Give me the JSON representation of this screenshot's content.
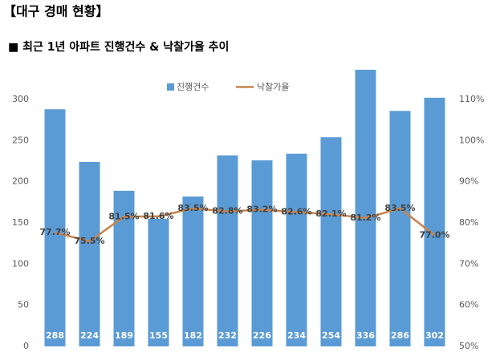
{
  "header": {
    "title": "【대구 경매 현황】",
    "subtitle": "■ 최근 1년 아파트 진행건수 & 낙찰가율 추이"
  },
  "chart_data": {
    "type": "bar-line",
    "series": [
      {
        "name": "진행건수",
        "type": "bar",
        "color": "#5b9bd5",
        "values": [
          288,
          224,
          189,
          155,
          182,
          232,
          226,
          234,
          254,
          336,
          286,
          302
        ]
      },
      {
        "name": "낙찰가율",
        "type": "line",
        "axis": "y2",
        "color": "#c8844c",
        "values": [
          77.7,
          75.5,
          81.5,
          81.6,
          83.5,
          82.8,
          83.2,
          82.6,
          82.1,
          81.2,
          83.5,
          77.0
        ],
        "value_labels": [
          "77.7%",
          "75.5%",
          "81.5%",
          "81.6%",
          "83.5%",
          "82.8%",
          "83.2%",
          "82.6%",
          "82.1%",
          "81.2%",
          "83.5%",
          "77.0%"
        ]
      }
    ],
    "ylim": [
      0,
      350
    ],
    "yticks": [
      0,
      50,
      100,
      150,
      200,
      250,
      300
    ],
    "y2lim": [
      50,
      120
    ],
    "y2ticks": [
      {
        "value": 50,
        "label": "50%"
      },
      {
        "value": 60,
        "label": "60%"
      },
      {
        "value": 70,
        "label": "70%"
      },
      {
        "value": 80,
        "label": "80%"
      },
      {
        "value": 90,
        "label": "90%"
      },
      {
        "value": 100,
        "label": "100%"
      },
      {
        "value": 110,
        "label": "110%"
      }
    ],
    "legend": "top"
  }
}
